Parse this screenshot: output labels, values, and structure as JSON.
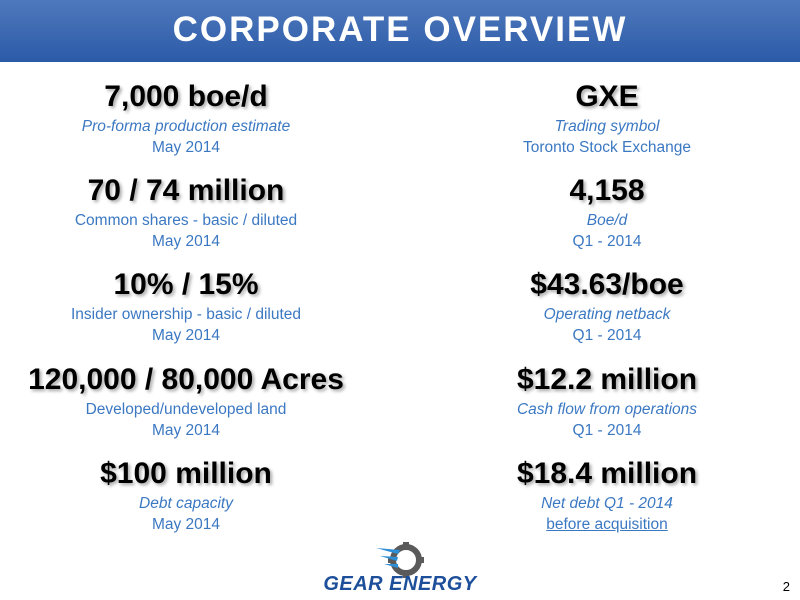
{
  "header": {
    "title": "CORPORATE OVERVIEW"
  },
  "left": [
    {
      "value": "7,000 boe/d",
      "label": "Pro-forma production estimate",
      "sublabel": "May 2014"
    },
    {
      "value": "70 / 74 million",
      "label": "Common shares - basic / diluted",
      "sublabel": "May 2014"
    },
    {
      "value": "10% / 15%",
      "label": "Insider ownership - basic / diluted",
      "sublabel": "May 2014"
    },
    {
      "value": "120,000 / 80,000 Acres",
      "label": "Developed/undeveloped land",
      "sublabel": "May 2014"
    },
    {
      "value": "$100 million",
      "label": "Debt capacity",
      "sublabel": "May 2014"
    }
  ],
  "right": [
    {
      "value": "GXE",
      "label": "Trading symbol",
      "sublabel": "Toronto Stock Exchange"
    },
    {
      "value": "4,158",
      "label": "Boe/d",
      "sublabel": "Q1 - 2014"
    },
    {
      "value": "$43.63/boe",
      "label": "Operating netback",
      "sublabel": "Q1 - 2014"
    },
    {
      "value": "$12.2 million",
      "label": "Cash flow from operations",
      "sublabel": "Q1 - 2014"
    },
    {
      "value": "$18.4 million",
      "label": "Net debt Q1 - 2014",
      "sublabel": "before acquisition"
    }
  ],
  "footer": {
    "logo": "GEAR ENERGY",
    "page": 2
  }
}
